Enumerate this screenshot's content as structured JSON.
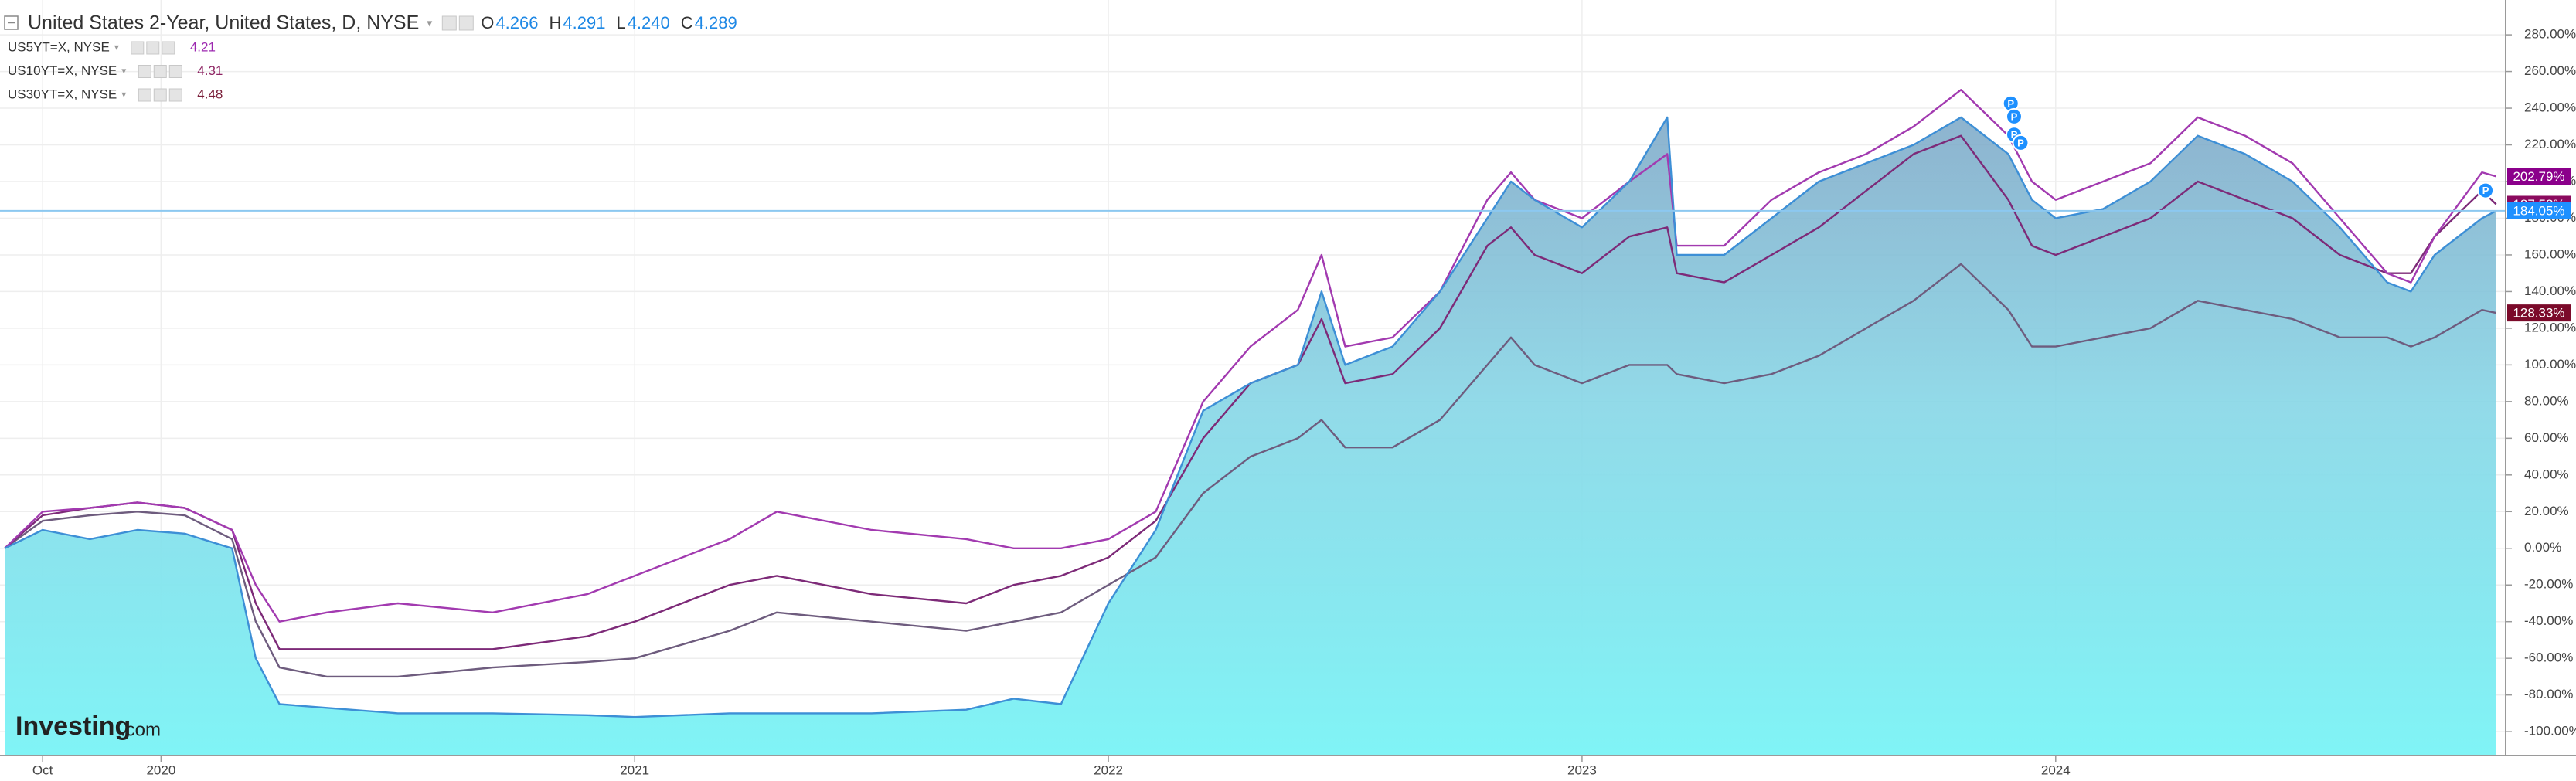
{
  "chart_data": {
    "type": "line",
    "legend": {
      "title": "United States 2-Year, United States, D, NYSE",
      "ohlc": [
        {
          "key": "O",
          "value": "4.266"
        },
        {
          "key": "H",
          "value": "4.291"
        },
        {
          "key": "L",
          "value": "4.240"
        },
        {
          "key": "C",
          "value": "4.289"
        }
      ]
    },
    "x": [
      2019.67,
      2019.75,
      2019.85,
      2019.95,
      2020.05,
      2020.15,
      2020.2,
      2020.25,
      2020.35,
      2020.5,
      2020.7,
      2020.9,
      2021.0,
      2021.2,
      2021.3,
      2021.5,
      2021.7,
      2021.8,
      2021.9,
      2022.0,
      2022.1,
      2022.2,
      2022.3,
      2022.4,
      2022.45,
      2022.5,
      2022.6,
      2022.7,
      2022.8,
      2022.85,
      2022.9,
      2023.0,
      2023.1,
      2023.18,
      2023.2,
      2023.3,
      2023.4,
      2023.5,
      2023.6,
      2023.7,
      2023.8,
      2023.9,
      2023.95,
      2024.0,
      2024.1,
      2024.2,
      2024.3,
      2024.4,
      2024.5,
      2024.6,
      2024.7,
      2024.75,
      2024.8,
      2024.9,
      2024.93
    ],
    "series": [
      {
        "name": "US30YT=X, NYSE",
        "quote": "4.48",
        "color": "#6e5c7e",
        "label_color": "#7b0a2a",
        "quote_color": "#7b1f3a",
        "end_label": "128.33%",
        "values": [
          0,
          15,
          18,
          20,
          18,
          5,
          -40,
          -65,
          -70,
          -70,
          -65,
          -62,
          -60,
          -45,
          -35,
          -40,
          -45,
          -40,
          -35,
          -20,
          -5,
          30,
          50,
          60,
          70,
          55,
          55,
          70,
          100,
          115,
          100,
          90,
          100,
          100,
          95,
          90,
          95,
          105,
          120,
          135,
          155,
          130,
          110,
          110,
          115,
          120,
          135,
          130,
          125,
          115,
          115,
          110,
          115,
          130,
          128.33
        ]
      },
      {
        "name": "US10YT=X, NYSE",
        "quote": "4.31",
        "color": "#7d2a78",
        "label_color": "#8b0a5e",
        "quote_color": "#8e2463",
        "end_label": "187.58%",
        "values": [
          0,
          18,
          22,
          25,
          22,
          10,
          -30,
          -55,
          -55,
          -55,
          -55,
          -48,
          -40,
          -20,
          -15,
          -25,
          -30,
          -20,
          -15,
          -5,
          15,
          60,
          90,
          100,
          125,
          90,
          95,
          120,
          165,
          175,
          160,
          150,
          170,
          175,
          150,
          145,
          160,
          175,
          195,
          215,
          225,
          190,
          165,
          160,
          170,
          180,
          200,
          190,
          180,
          160,
          150,
          150,
          170,
          195,
          187.58
        ]
      },
      {
        "name": "US5YT=X, NYSE",
        "quote": "4.21",
        "color": "#a23ab0",
        "label_color": "#8b008b",
        "quote_color": "#9c27b0",
        "end_label": "202.79%",
        "values": [
          0,
          20,
          22,
          25,
          22,
          10,
          -20,
          -40,
          -35,
          -30,
          -35,
          -25,
          -15,
          5,
          20,
          10,
          5,
          0,
          0,
          5,
          20,
          80,
          110,
          130,
          160,
          110,
          115,
          140,
          190,
          205,
          190,
          180,
          200,
          215,
          165,
          165,
          190,
          205,
          215,
          230,
          250,
          225,
          200,
          190,
          200,
          210,
          235,
          225,
          210,
          180,
          150,
          145,
          170,
          205,
          202.79
        ]
      },
      {
        "name": "United States 2-Year",
        "color": "#3d8fd6",
        "label_color": "#1e90ff",
        "area": true,
        "end_label": "184.05%",
        "values": [
          0,
          10,
          5,
          10,
          8,
          0,
          -60,
          -85,
          -87,
          -90,
          -90,
          -91,
          -92,
          -90,
          -90,
          -90,
          -88,
          -82,
          -85,
          -30,
          10,
          75,
          90,
          100,
          140,
          100,
          110,
          140,
          180,
          200,
          190,
          175,
          200,
          235,
          160,
          160,
          180,
          200,
          210,
          220,
          235,
          215,
          190,
          180,
          185,
          200,
          225,
          215,
          200,
          175,
          145,
          140,
          160,
          180,
          184.05
        ]
      }
    ],
    "xlim": [
      2019.66,
      2024.95
    ],
    "xticks": [
      {
        "value": 2019.75,
        "label": "Oct"
      },
      2020,
      2021,
      2022,
      2023,
      2024
    ],
    "ylim": [
      -113,
      299
    ],
    "yticks": [
      {
        "value": -100,
        "label": "-100.00%"
      },
      {
        "value": -80,
        "label": "-80.00%"
      },
      {
        "value": -60,
        "label": "-60.00%"
      },
      {
        "value": -40,
        "label": "-40.00%"
      },
      {
        "value": -20,
        "label": "-20.00%"
      },
      {
        "value": 0,
        "label": "0.00%"
      },
      {
        "value": 20,
        "label": "20.00%"
      },
      {
        "value": 40,
        "label": "40.00%"
      },
      {
        "value": 60,
        "label": "60.00%"
      },
      {
        "value": 80,
        "label": "80.00%"
      },
      {
        "value": 100,
        "label": "100.00%"
      },
      {
        "value": 120,
        "label": "120.00%"
      },
      {
        "value": 140,
        "label": "140.00%"
      },
      {
        "value": 160,
        "label": "160.00%"
      },
      {
        "value": 180,
        "label": "180.00%"
      },
      {
        "value": 200,
        "label": "200.00%"
      },
      {
        "value": 220,
        "label": "220.00%"
      },
      {
        "value": 240,
        "label": "240.00%"
      },
      {
        "value": 260,
        "label": "260.00%"
      },
      {
        "value": 280,
        "label": "280.00%"
      }
    ],
    "grid": true,
    "annotation_marker": "P",
    "watermark": {
      "brand": "Investing",
      "suffix": ".com"
    }
  }
}
